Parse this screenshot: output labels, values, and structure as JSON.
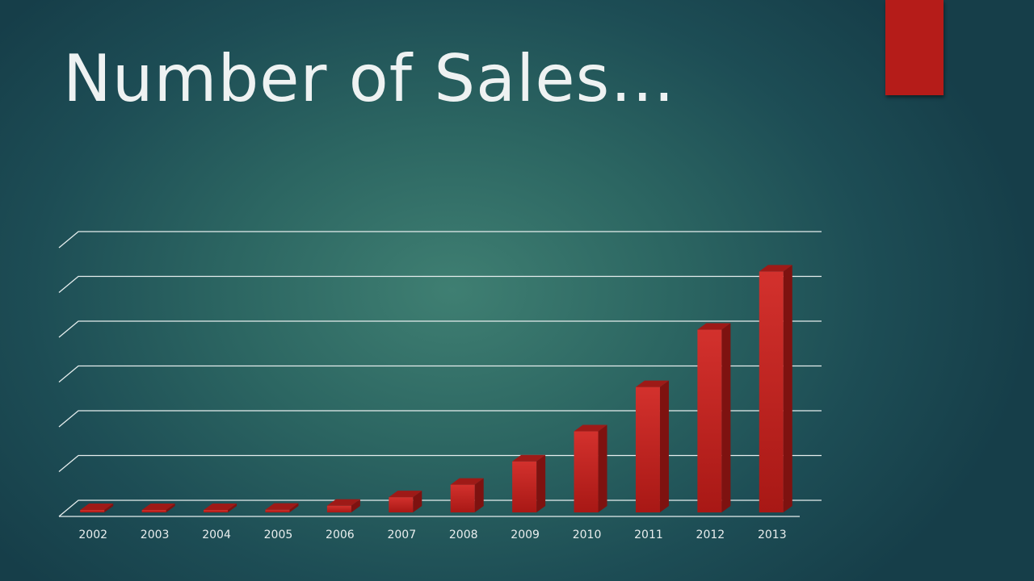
{
  "slide": {
    "title": "Number of Sales…"
  },
  "colors": {
    "accent": "#b51c19",
    "bar_front": "#c72a27",
    "bar_side": "#7e1210",
    "bar_top": "#9e1a17",
    "gridline": "#e6eeee",
    "text": "#eef2f2"
  },
  "chart_data": {
    "type": "bar",
    "style": "3d-column",
    "title": "",
    "xlabel": "",
    "ylabel": "",
    "categories": [
      "2002",
      "2003",
      "2004",
      "2005",
      "2006",
      "2007",
      "2008",
      "2009",
      "2010",
      "2011",
      "2012",
      "2013"
    ],
    "values": [
      0.2,
      0.2,
      0.3,
      0.6,
      1.5,
      3.4,
      6.2,
      11.4,
      18.1,
      28.0,
      40.8,
      53.8
    ],
    "ylim": [
      0,
      60
    ],
    "y_gridlines": 6,
    "grid": true,
    "y_tick_labels_shown": false,
    "legend": "none"
  }
}
